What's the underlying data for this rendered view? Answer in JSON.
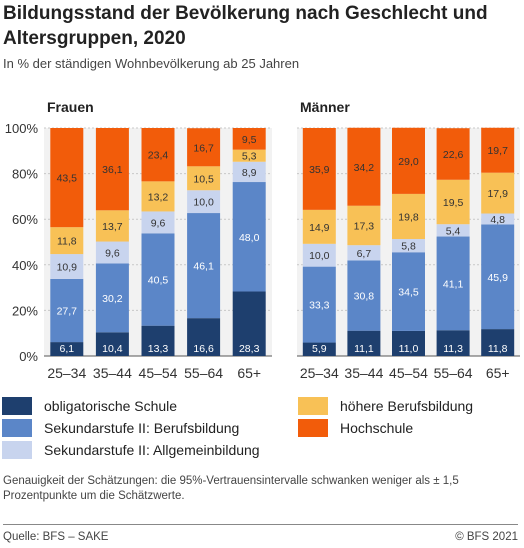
{
  "title": "Bildungsstand der Bevölkerung nach Geschlecht und Altersgruppen, 2020",
  "subtitle": "In % der ständigen Wohnbevölkerung ab 25 Jahren",
  "chart_data": {
    "type": "bar",
    "stacked": true,
    "ylim": [
      0,
      100
    ],
    "yticks": [
      "0%",
      "20%",
      "40%",
      "60%",
      "80%",
      "100%"
    ],
    "categories": [
      "25–34",
      "35–44",
      "45–54",
      "55–64",
      "65+"
    ],
    "legend_position": "bottom",
    "series_meta": [
      {
        "name": "obligatorische Schule",
        "color": "#1e3f6e"
      },
      {
        "name": "Sekundarstufe II: Berufsbildung",
        "color": "#5b86c8"
      },
      {
        "name": "Sekundarstufe II: Allgemeinbildung",
        "color": "#c8d4ee"
      },
      {
        "name": "höhere Berufsbildung",
        "color": "#f8c156"
      },
      {
        "name": "Hochschule",
        "color": "#f25c0a"
      }
    ],
    "panels": [
      {
        "title": "Frauen",
        "series": [
          {
            "name": "obligatorische Schule",
            "values": [
              6.1,
              10.4,
              13.3,
              16.6,
              28.3
            ]
          },
          {
            "name": "Sekundarstufe II: Berufsbildung",
            "values": [
              27.7,
              30.2,
              40.5,
              46.1,
              48.0
            ]
          },
          {
            "name": "Sekundarstufe II: Allgemeinbildung",
            "values": [
              10.9,
              9.6,
              9.6,
              10.0,
              8.9
            ]
          },
          {
            "name": "höhere Berufsbildung",
            "values": [
              11.8,
              13.7,
              13.2,
              10.5,
              5.3
            ]
          },
          {
            "name": "Hochschule",
            "values": [
              43.5,
              36.1,
              23.4,
              16.7,
              9.5
            ]
          }
        ]
      },
      {
        "title": "Männer",
        "series": [
          {
            "name": "obligatorische Schule",
            "values": [
              5.9,
              11.1,
              11.0,
              11.3,
              11.8
            ]
          },
          {
            "name": "Sekundarstufe II: Berufsbildung",
            "values": [
              33.3,
              30.8,
              34.5,
              41.1,
              45.9
            ]
          },
          {
            "name": "Sekundarstufe II: Allgemeinbildung",
            "values": [
              10.0,
              6.7,
              5.8,
              5.4,
              4.8
            ]
          },
          {
            "name": "höhere Berufsbildung",
            "values": [
              14.9,
              17.3,
              19.8,
              19.5,
              17.9
            ]
          },
          {
            "name": "Hochschule",
            "values": [
              35.9,
              34.2,
              29.0,
              22.6,
              19.7
            ]
          }
        ]
      }
    ]
  },
  "legend": {
    "left": [
      "obligatorische Schule",
      "Sekundarstufe II: Berufsbildung",
      "Sekundarstufe II: Allgemeinbildung"
    ],
    "right": [
      "höhere Berufsbildung",
      "Hochschule"
    ]
  },
  "note": "Genauigkeit der Schätzungen: die 95%-Vertrauensintervalle schwanken weniger als ± 1,5 Prozentpunkte um die Schätzwerte.",
  "source": "Quelle: BFS – SAKE",
  "copyright": "© BFS 2021"
}
